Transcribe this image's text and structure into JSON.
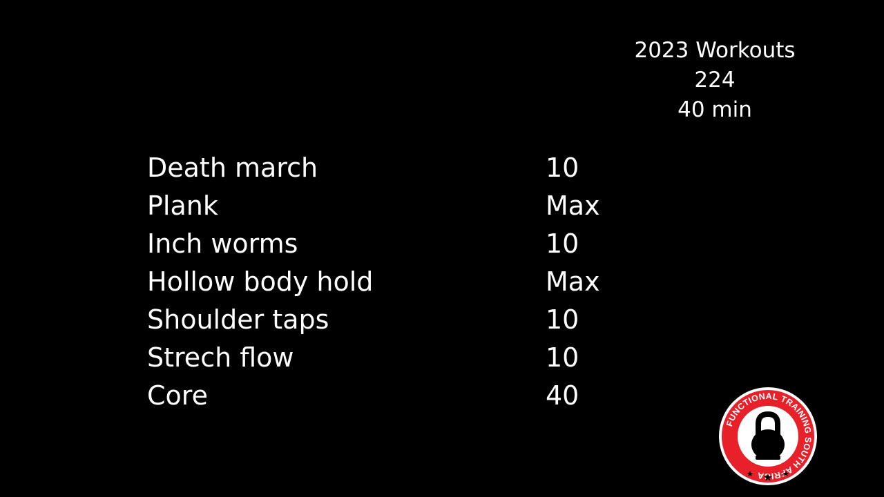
{
  "header": {
    "title": "2023 Workouts",
    "number": "224",
    "duration": "40 min"
  },
  "exercises": [
    {
      "name": "Death march",
      "reps": "10"
    },
    {
      "name": "Plank",
      "reps": "Max"
    },
    {
      "name": "Inch worms",
      "reps": "10"
    },
    {
      "name": "Hollow body hold",
      "reps": "Max"
    },
    {
      "name": "Shoulder taps",
      "reps": "10"
    },
    {
      "name": "Strech flow",
      "reps": "10"
    },
    {
      "name": "Core",
      "reps": "40"
    }
  ],
  "logo": {
    "text": "FUNCTIONAL TRAINING SOUTH AFRICA",
    "icon": "kettlebell-icon",
    "colors": {
      "ring": "#e8202a",
      "inner": "#ffffff",
      "bell": "#000000"
    }
  }
}
